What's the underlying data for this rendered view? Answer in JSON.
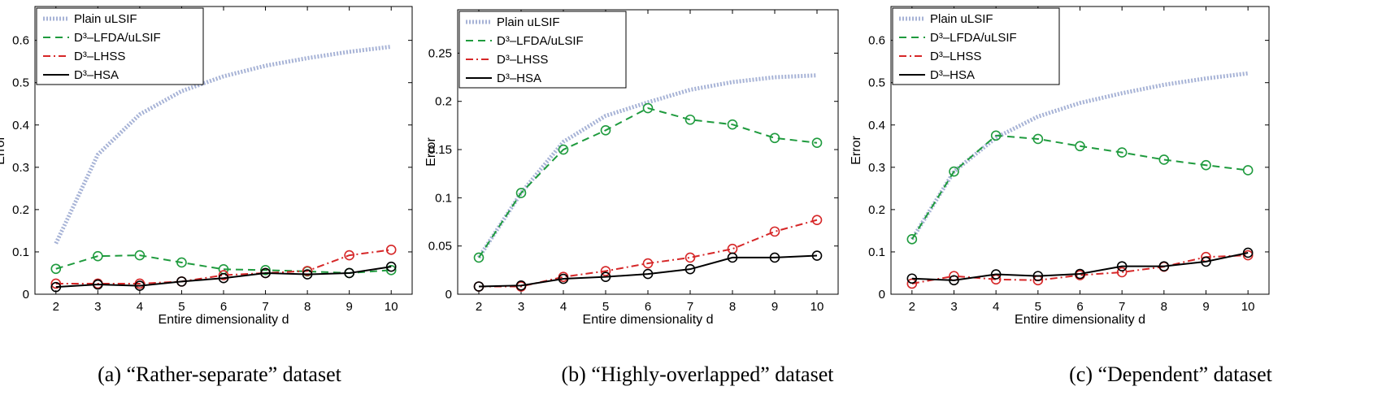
{
  "captions": [
    "(a) “Rather-separate” dataset",
    "(b) “Highly-overlapped” dataset",
    "(c) “Dependent” dataset"
  ],
  "chart_data": [
    {
      "type": "line",
      "title": "",
      "xlabel": "Entire dimensionality d",
      "ylabel": "Error",
      "xlim": [
        1.5,
        10.5
      ],
      "ylim": [
        0,
        0.68
      ],
      "xticks": [
        2,
        3,
        4,
        5,
        6,
        7,
        8,
        9,
        10
      ],
      "yticks": [
        0,
        0.1,
        0.2,
        0.3,
        0.4,
        0.5,
        0.6
      ],
      "ytick_labels": [
        "0",
        "0.1",
        "0.2",
        "0.3",
        "0.4",
        "0.5",
        "0.6"
      ],
      "legend_position": "top-left",
      "x": [
        2,
        3,
        4,
        5,
        6,
        7,
        8,
        9,
        10
      ],
      "series": [
        {
          "name": "Plain uLSIF",
          "values": [
            0.12,
            0.33,
            0.425,
            0.48,
            0.515,
            0.54,
            0.558,
            0.573,
            0.585
          ]
        },
        {
          "name": "D³–LFDA/uLSIF",
          "values": [
            0.06,
            0.09,
            0.092,
            0.075,
            0.059,
            0.057,
            0.054,
            0.05,
            0.057
          ]
        },
        {
          "name": "D³–LHSS",
          "values": [
            0.025,
            0.025,
            0.025,
            0.03,
            0.045,
            0.05,
            0.055,
            0.092,
            0.105
          ]
        },
        {
          "name": "D³–HSA",
          "values": [
            0.017,
            0.023,
            0.02,
            0.03,
            0.038,
            0.05,
            0.047,
            0.05,
            0.065
          ]
        }
      ]
    },
    {
      "type": "line",
      "title": "",
      "xlabel": "Entire dimensionality d",
      "ylabel": "Error",
      "xlim": [
        1.5,
        10.5
      ],
      "ylim": [
        0,
        0.295
      ],
      "xticks": [
        2,
        3,
        4,
        5,
        6,
        7,
        8,
        9,
        10
      ],
      "yticks": [
        0,
        0.05,
        0.1,
        0.15,
        0.2,
        0.25
      ],
      "ytick_labels": [
        "0",
        "0.05",
        "0.1",
        "0.15",
        "0.2",
        "0.25"
      ],
      "legend_position": "top-left",
      "x": [
        2,
        3,
        4,
        5,
        6,
        7,
        8,
        9,
        10
      ],
      "series": [
        {
          "name": "Plain uLSIF",
          "values": [
            0.038,
            0.105,
            0.158,
            0.185,
            0.199,
            0.212,
            0.22,
            0.225,
            0.227
          ]
        },
        {
          "name": "D³–LFDA/uLSIF",
          "values": [
            0.038,
            0.105,
            0.15,
            0.17,
            0.193,
            0.181,
            0.176,
            0.162,
            0.157
          ]
        },
        {
          "name": "D³–LHSS",
          "values": [
            0.008,
            0.008,
            0.018,
            0.024,
            0.032,
            0.038,
            0.047,
            0.065,
            0.077
          ]
        },
        {
          "name": "D³–HSA",
          "values": [
            0.008,
            0.009,
            0.016,
            0.018,
            0.021,
            0.026,
            0.038,
            0.038,
            0.04
          ]
        }
      ]
    },
    {
      "type": "line",
      "title": "",
      "xlabel": "Entire dimensionality d",
      "ylabel": "Error",
      "xlim": [
        1.5,
        10.5
      ],
      "ylim": [
        0,
        0.68
      ],
      "xticks": [
        2,
        3,
        4,
        5,
        6,
        7,
        8,
        9,
        10
      ],
      "yticks": [
        0,
        0.1,
        0.2,
        0.3,
        0.4,
        0.5,
        0.6
      ],
      "ytick_labels": [
        "0",
        "0.1",
        "0.2",
        "0.3",
        "0.4",
        "0.5",
        "0.6"
      ],
      "legend_position": "top-left",
      "x": [
        2,
        3,
        4,
        5,
        6,
        7,
        8,
        9,
        10
      ],
      "series": [
        {
          "name": "Plain uLSIF",
          "values": [
            0.13,
            0.29,
            0.37,
            0.42,
            0.452,
            0.475,
            0.495,
            0.51,
            0.522
          ]
        },
        {
          "name": "D³–LFDA/uLSIF",
          "values": [
            0.13,
            0.29,
            0.375,
            0.367,
            0.35,
            0.335,
            0.318,
            0.305,
            0.293
          ]
        },
        {
          "name": "D³–LHSS",
          "values": [
            0.025,
            0.043,
            0.035,
            0.033,
            0.045,
            0.052,
            0.065,
            0.088,
            0.092
          ]
        },
        {
          "name": "D³–HSA",
          "values": [
            0.037,
            0.033,
            0.047,
            0.043,
            0.048,
            0.066,
            0.066,
            0.077,
            0.098
          ]
        }
      ]
    }
  ],
  "styles": {
    "series_colors": [
      "#a7b3d6",
      "#1f9b3e",
      "#d62728",
      "#000000"
    ],
    "marker_colors": [
      null,
      "#1f9b3e",
      "#d62728",
      "#000000"
    ]
  }
}
